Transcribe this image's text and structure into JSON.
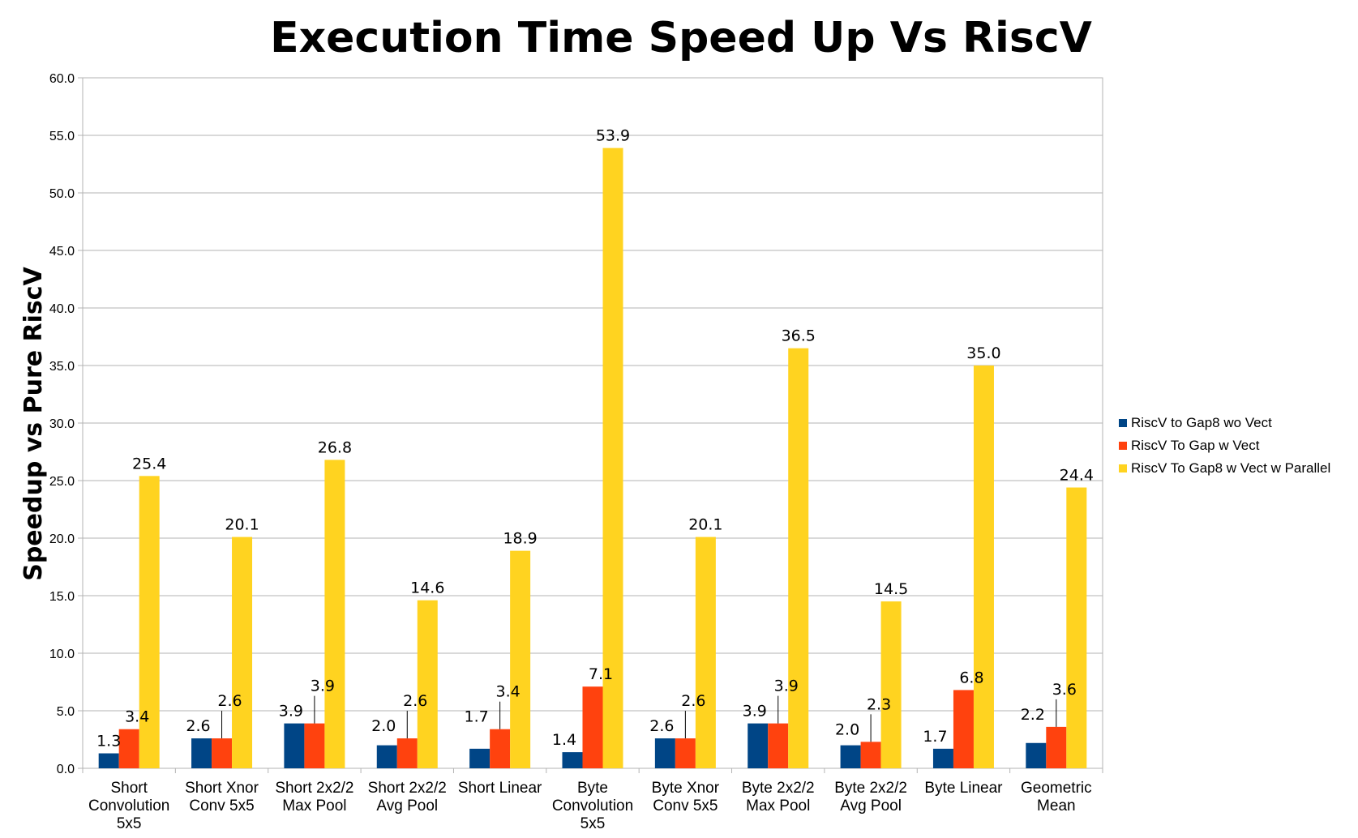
{
  "chart_data": {
    "type": "bar",
    "title": "Execution Time Speed Up Vs RiscV",
    "xlabel": "",
    "ylabel": "Speedup vs Pure RiscV",
    "ylim": [
      0,
      60
    ],
    "yticks": [
      "0.0",
      "5.0",
      "10.0",
      "15.0",
      "20.0",
      "25.0",
      "30.0",
      "35.0",
      "40.0",
      "45.0",
      "50.0",
      "55.0",
      "60.0"
    ],
    "grid": true,
    "legend_position": "right",
    "categories": [
      [
        "Short",
        "Convolution",
        "5x5"
      ],
      [
        "Short Xnor",
        "Conv 5x5"
      ],
      [
        "Short 2x2/2",
        "Max Pool"
      ],
      [
        "Short 2x2/2",
        "Avg Pool"
      ],
      [
        "Short Linear"
      ],
      [
        "Byte",
        "Convolution",
        "5x5"
      ],
      [
        "Byte Xnor",
        "Conv 5x5"
      ],
      [
        "Byte 2x2/2",
        "Max Pool"
      ],
      [
        "Byte 2x2/2",
        "Avg Pool"
      ],
      [
        "Byte Linear"
      ],
      [
        "Geometric",
        "Mean"
      ]
    ],
    "series": [
      {
        "name": "RiscV to Gap8 wo Vect",
        "color": "#004586",
        "values": [
          1.3,
          2.6,
          3.9,
          2.0,
          1.7,
          1.4,
          2.6,
          3.9,
          2.0,
          1.7,
          2.2
        ],
        "labels": [
          "1.3",
          "2.6",
          "3.9",
          "2.0",
          "1.7",
          "1.4",
          "2.6",
          "3.9",
          "2.0",
          "1.7",
          "2.2"
        ]
      },
      {
        "name": "RiscV To Gap w Vect",
        "color": "#ff420e",
        "values": [
          3.4,
          2.6,
          3.9,
          2.6,
          3.4,
          7.1,
          2.6,
          3.9,
          2.3,
          6.8,
          3.6
        ],
        "labels": [
          "3.4",
          "2.6",
          "3.9",
          "2.6",
          "3.4",
          "7.1",
          "2.6",
          "3.9",
          "2.3",
          "6.8",
          "3.6"
        ]
      },
      {
        "name": "RiscV To Gap8 w Vect w Parallel",
        "color": "#ffd320",
        "values": [
          25.4,
          20.1,
          26.8,
          14.6,
          18.9,
          53.9,
          20.1,
          36.5,
          14.5,
          35.0,
          24.4
        ],
        "labels": [
          "25.4",
          "20.1",
          "26.8",
          "14.6",
          "18.9",
          "53.9",
          "20.1",
          "36.5",
          "14.5",
          "35.0",
          "24.4"
        ]
      }
    ]
  }
}
